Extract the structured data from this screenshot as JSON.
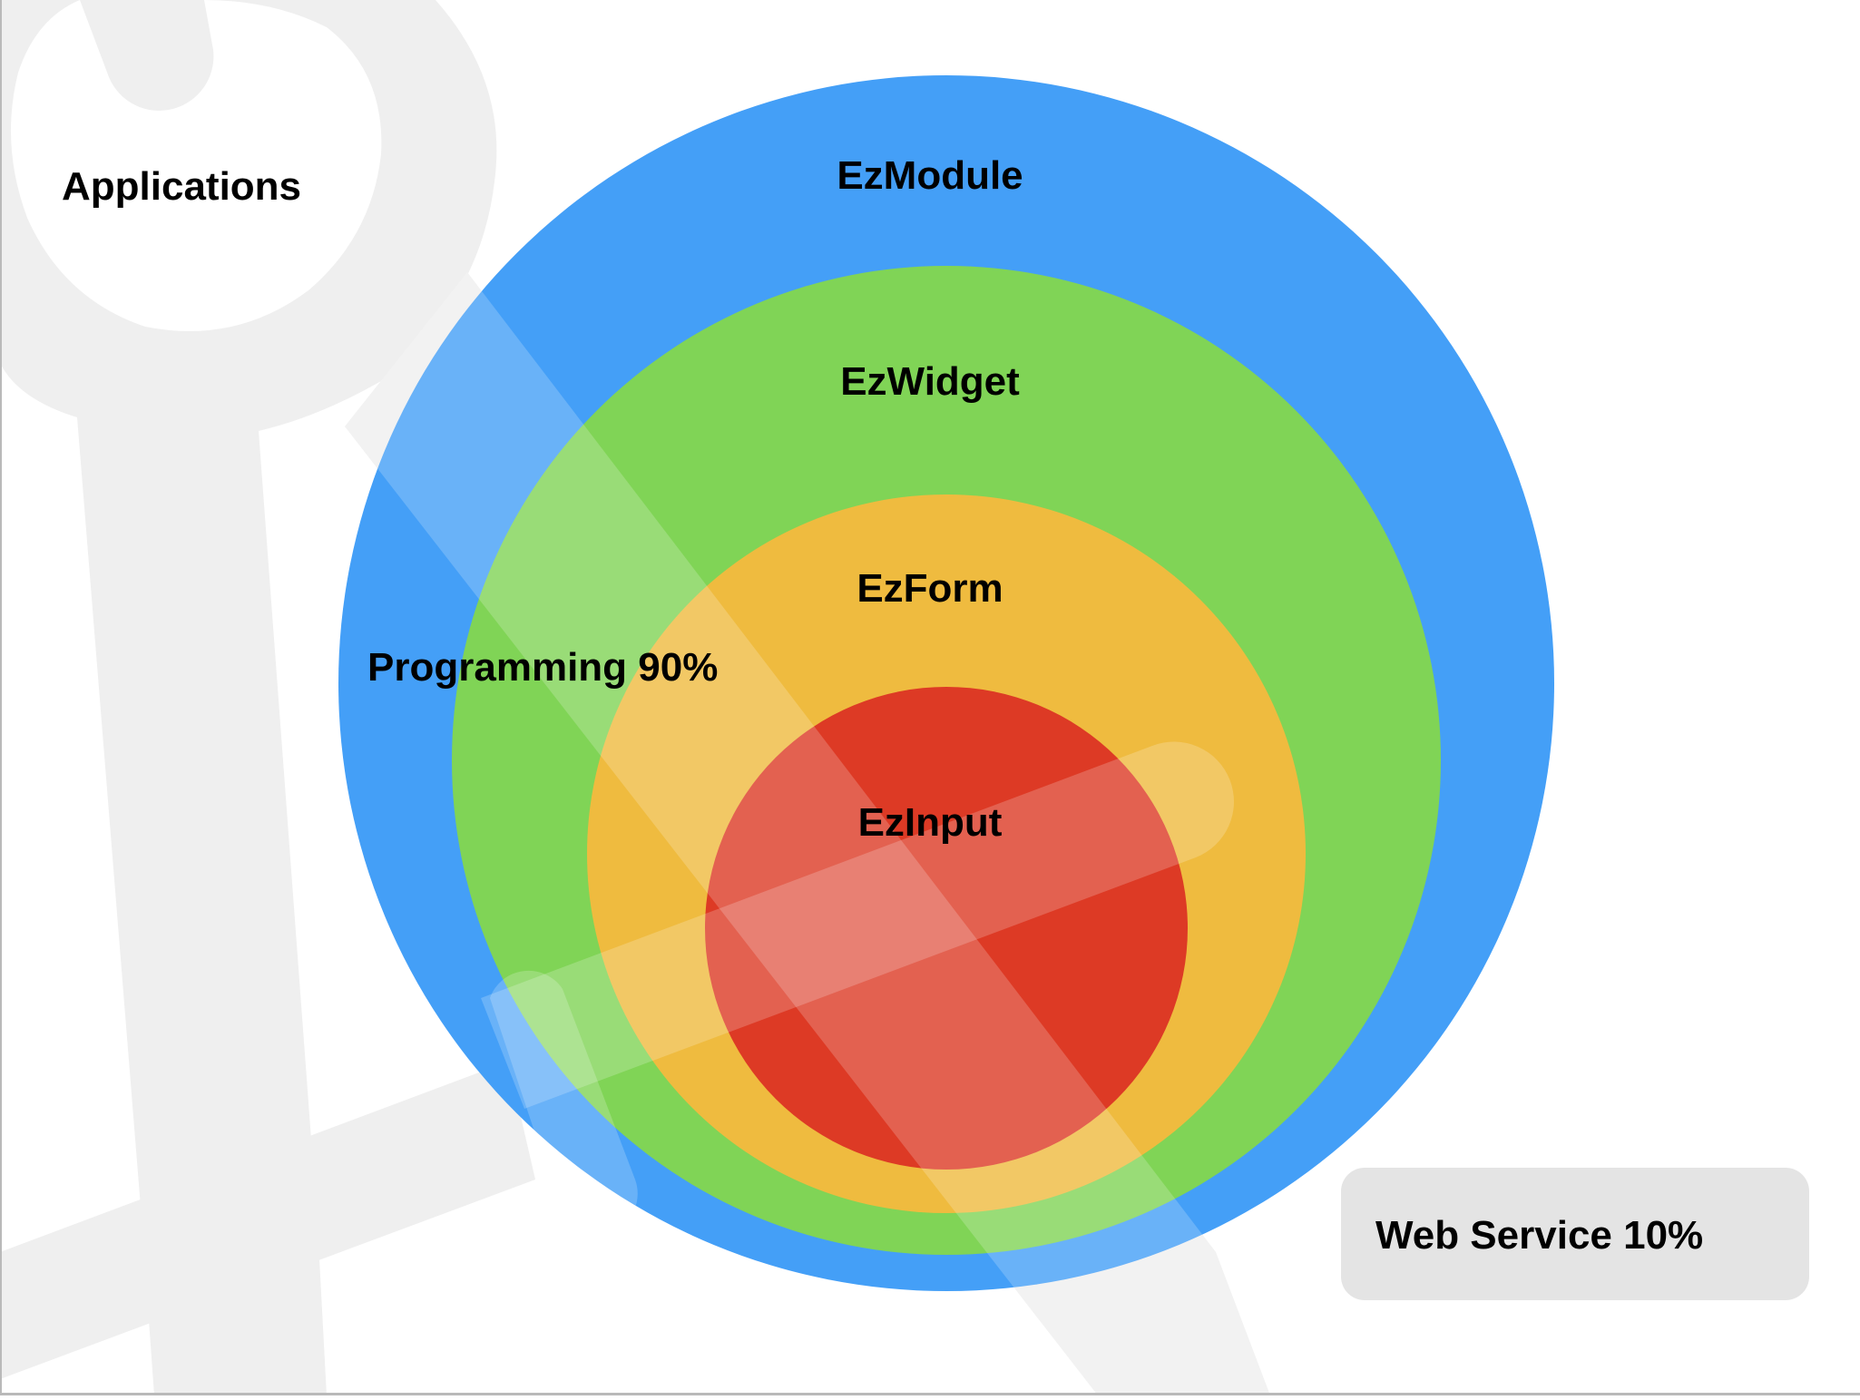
{
  "diagram": {
    "applications_label": "Applications",
    "layers": [
      {
        "id": "ezmodule",
        "label": "EzModule",
        "color": "#449ff7"
      },
      {
        "id": "ezwidget",
        "label": "EzWidget",
        "color": "#80d456"
      },
      {
        "id": "ezform",
        "label": "EzForm",
        "color": "#efbb3f"
      },
      {
        "id": "ezinput",
        "label": "EzInput",
        "color": "#dd3a25"
      }
    ],
    "programming_label": "Programming 90%",
    "web_service_label": "Web Service 10%",
    "watermark_icon": "wrench-screwdriver-icon",
    "watermark_color": "#efefef",
    "web_service_box_color": "#e4e4e4"
  }
}
